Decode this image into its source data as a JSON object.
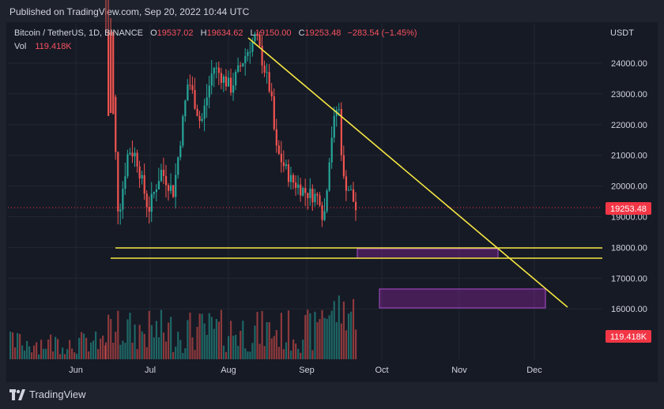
{
  "header": {
    "published_text": "Published on TradingView.com, Sep 20, 2022 10:44 UTC"
  },
  "legend": {
    "symbol": "Bitcoin / TetherUS, 1D, BINANCE",
    "open_label": "O",
    "open_value": "19537.02",
    "high_label": "H",
    "high_value": "19634.62",
    "low_label": "L",
    "low_value": "19150.00",
    "close_label": "C",
    "close_value": "19253.48",
    "change": "−283.54 (−1.45%)",
    "vol_label": "Vol",
    "vol_value": "119.418K"
  },
  "price_axis": {
    "currency": "USDT",
    "ticks": [
      "24000.00",
      "23000.00",
      "22000.00",
      "21000.00",
      "20000.00",
      "19000.00",
      "18000.00",
      "17000.00",
      "16000.00"
    ],
    "last_price_badge": "19253.48",
    "volume_badge": "119.418K"
  },
  "time_axis": {
    "ticks": [
      "Jun",
      "Jul",
      "Aug",
      "Sep",
      "Oct",
      "Nov",
      "Dec"
    ]
  },
  "footer": {
    "brand": "TradingView"
  },
  "colors": {
    "background": "#161a25",
    "bull": "#26a69a",
    "bear": "#ef5350",
    "trendline": "#f5e642",
    "zone": "#9c27b0",
    "badge": "#f23645"
  },
  "annotations": {
    "descending_trendline": true,
    "horizontal_support_lines": 2,
    "demand_zones": 2
  }
}
